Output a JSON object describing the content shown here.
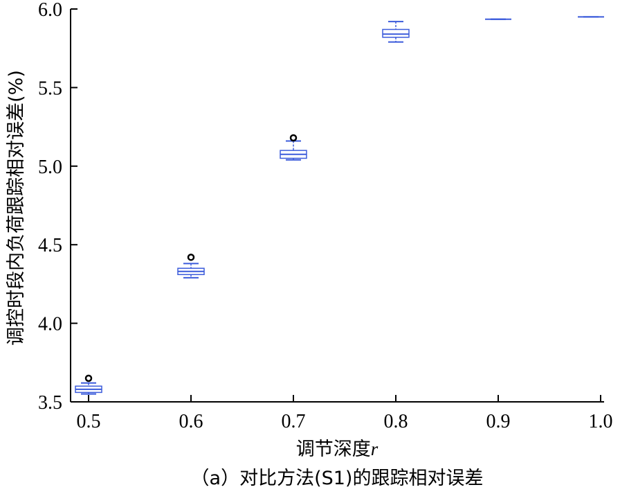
{
  "chart_data": {
    "type": "box",
    "xlabel": "调节深度",
    "xlabel_var": "r",
    "ylabel": "调控时段内负荷跟踪相对误差(%)",
    "caption": "（a）对比方法(S1)的跟踪相对误差",
    "ylim": [
      3.5,
      6.0
    ],
    "xlim": [
      0.45,
      1.0
    ],
    "yticks": [
      "3.5",
      "4.0",
      "4.5",
      "5.0",
      "5.5",
      "6.0"
    ],
    "xticks": [
      "0.5",
      "0.6",
      "0.7",
      "0.8",
      "0.9",
      "1.0"
    ],
    "color": "#3b5bdb",
    "boxes": [
      {
        "x": 0.5,
        "whislo": 3.55,
        "q1": 3.56,
        "med": 3.58,
        "q3": 3.6,
        "whishi": 3.62,
        "outliers": [
          3.65
        ]
      },
      {
        "x": 0.6,
        "whislo": 4.29,
        "q1": 4.31,
        "med": 4.33,
        "q3": 4.35,
        "whishi": 4.38,
        "outliers": [
          4.42
        ]
      },
      {
        "x": 0.7,
        "whislo": 5.04,
        "q1": 5.05,
        "med": 5.075,
        "q3": 5.1,
        "whishi": 5.16,
        "outliers": [
          5.18
        ]
      },
      {
        "x": 0.8,
        "whislo": 5.79,
        "q1": 5.82,
        "med": 5.84,
        "q3": 5.87,
        "whishi": 5.92,
        "outliers": []
      },
      {
        "x": 0.9,
        "whislo": 5.935,
        "q1": 5.935,
        "med": 5.935,
        "q3": 5.935,
        "whishi": 5.935,
        "outliers": []
      },
      {
        "x": 1.0,
        "whislo": 5.95,
        "q1": 5.95,
        "med": 5.95,
        "q3": 5.95,
        "whishi": 5.95,
        "outliers": []
      }
    ]
  }
}
